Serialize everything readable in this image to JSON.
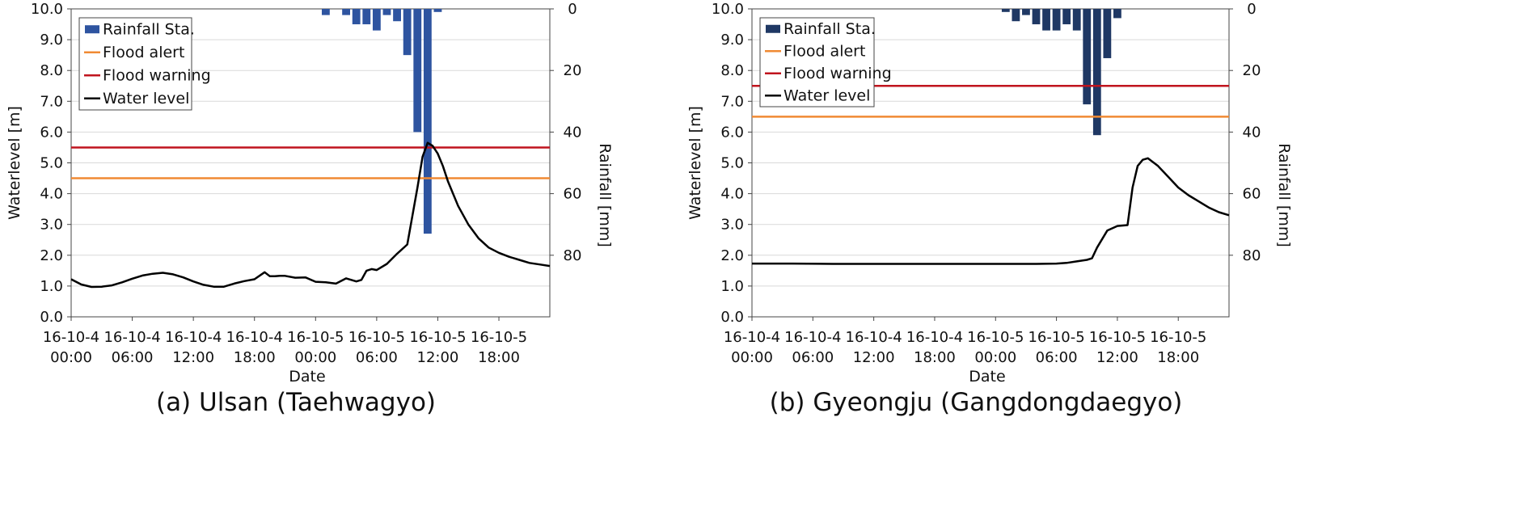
{
  "chart_data": [
    {
      "type": "line",
      "panel": "a",
      "caption": "(a) Ulsan (Taehwagyo)",
      "xlabel": "Date",
      "ylabel": "Waterlevel  [m]",
      "y2label": "Rainfall [mm]",
      "ylim": [
        0,
        10
      ],
      "y2lim": [
        100,
        0
      ],
      "y2_reversed": true,
      "yticks": [
        "0.0",
        "1.0",
        "2.0",
        "3.0",
        "4.0",
        "5.0",
        "6.0",
        "7.0",
        "8.0",
        "9.0",
        "10.0"
      ],
      "y2ticks": [
        "0",
        "20",
        "40",
        "60",
        "80"
      ],
      "xlim_hours": [
        0,
        47
      ],
      "xticks": [
        {
          "line1": "16-10-4",
          "line2": "00:00",
          "hour": 0
        },
        {
          "line1": "16-10-4",
          "line2": "06:00",
          "hour": 6
        },
        {
          "line1": "16-10-4",
          "line2": "12:00",
          "hour": 12
        },
        {
          "line1": "16-10-4",
          "line2": "18:00",
          "hour": 18
        },
        {
          "line1": "16-10-5",
          "line2": "00:00",
          "hour": 24
        },
        {
          "line1": "16-10-5",
          "line2": "06:00",
          "hour": 30
        },
        {
          "line1": "16-10-5",
          "line2": "12:00",
          "hour": 36
        },
        {
          "line1": "16-10-5",
          "line2": "18:00",
          "hour": 42
        }
      ],
      "grid": true,
      "legend_position": "top-left",
      "legend": [
        {
          "label": "Rainfall Sta.",
          "kind": "bar"
        },
        {
          "label": "Flood alert",
          "kind": "line"
        },
        {
          "label": "Flood warning",
          "kind": "line"
        },
        {
          "label": "Water level",
          "kind": "line"
        }
      ],
      "colors": {
        "rainfall": "#2e54a0",
        "alert": "#f08a33",
        "warning": "#c0141e",
        "water": "#000000"
      },
      "flood_alert": 4.5,
      "flood_warning": 5.5,
      "rainfall": {
        "hours": [
          25,
          27,
          28,
          29,
          30,
          31,
          32,
          33,
          34,
          35,
          36
        ],
        "values": [
          2,
          2,
          5,
          5,
          7,
          2,
          4,
          15,
          40,
          73,
          1
        ]
      },
      "water_level": {
        "hours": [
          0,
          1,
          2,
          3,
          4,
          5,
          6,
          7,
          8,
          9,
          10,
          11,
          12,
          13,
          14,
          15,
          16,
          17,
          18,
          19,
          19.5,
          20,
          20.5,
          21,
          22,
          23,
          24,
          25,
          26,
          27,
          28,
          28.5,
          29,
          29.5,
          30,
          31,
          32,
          33,
          34,
          34.5,
          35,
          35.5,
          36,
          36.5,
          37,
          38,
          39,
          40,
          41,
          42,
          43,
          44,
          45,
          46,
          47
        ],
        "values": [
          1.22,
          1.05,
          0.97,
          0.98,
          1.02,
          1.12,
          1.24,
          1.34,
          1.4,
          1.43,
          1.38,
          1.28,
          1.15,
          1.04,
          0.98,
          0.98,
          1.08,
          1.16,
          1.22,
          1.45,
          1.32,
          1.32,
          1.33,
          1.33,
          1.27,
          1.28,
          1.14,
          1.12,
          1.08,
          1.25,
          1.15,
          1.2,
          1.5,
          1.55,
          1.52,
          1.72,
          2.05,
          2.35,
          4.2,
          5.2,
          5.65,
          5.55,
          5.3,
          4.9,
          4.4,
          3.6,
          3.0,
          2.55,
          2.25,
          2.08,
          1.95,
          1.85,
          1.75,
          1.7,
          1.65
        ]
      }
    },
    {
      "type": "line",
      "panel": "b",
      "caption": "(b) Gyeongju (Gangdongdaegyo)",
      "xlabel": "Date",
      "ylabel": "Waterlevel  [m]",
      "y2label": "Rainfall [mm]",
      "ylim": [
        0,
        10
      ],
      "y2lim": [
        100,
        0
      ],
      "y2_reversed": true,
      "yticks": [
        "0.0",
        "1.0",
        "2.0",
        "3.0",
        "4.0",
        "5.0",
        "6.0",
        "7.0",
        "8.0",
        "9.0",
        "10.0"
      ],
      "y2ticks": [
        "0",
        "20",
        "40",
        "60",
        "80"
      ],
      "xlim_hours": [
        0,
        47
      ],
      "xticks": [
        {
          "line1": "16-10-4",
          "line2": "00:00",
          "hour": 0
        },
        {
          "line1": "16-10-4",
          "line2": "06:00",
          "hour": 6
        },
        {
          "line1": "16-10-4",
          "line2": "12:00",
          "hour": 12
        },
        {
          "line1": "16-10-4",
          "line2": "18:00",
          "hour": 18
        },
        {
          "line1": "16-10-5",
          "line2": "00:00",
          "hour": 24
        },
        {
          "line1": "16-10-5",
          "line2": "06:00",
          "hour": 30
        },
        {
          "line1": "16-10-5",
          "line2": "12:00",
          "hour": 36
        },
        {
          "line1": "16-10-5",
          "line2": "18:00",
          "hour": 42
        }
      ],
      "grid": true,
      "legend_position": "top-left",
      "legend": [
        {
          "label": "Rainfall Sta.",
          "kind": "bar"
        },
        {
          "label": "Flood alert",
          "kind": "line"
        },
        {
          "label": "Flood warning",
          "kind": "line"
        },
        {
          "label": "Water level",
          "kind": "line"
        }
      ],
      "colors": {
        "rainfall": "#1f3864",
        "alert": "#f08a33",
        "warning": "#c0141e",
        "water": "#000000"
      },
      "flood_alert": 6.5,
      "flood_warning": 7.5,
      "rainfall": {
        "hours": [
          25,
          26,
          27,
          28,
          29,
          30,
          31,
          32,
          33,
          34,
          35,
          36
        ],
        "values": [
          1,
          4,
          2,
          5,
          7,
          7,
          5,
          7,
          31,
          41,
          16,
          3
        ]
      },
      "water_level": {
        "hours": [
          0,
          4,
          8,
          12,
          16,
          20,
          24,
          28,
          30,
          31,
          32,
          33,
          33.5,
          34,
          35,
          36,
          37,
          37.5,
          38,
          38.5,
          39,
          40,
          41,
          42,
          43,
          44,
          45,
          46,
          47
        ],
        "values": [
          1.73,
          1.73,
          1.72,
          1.72,
          1.72,
          1.72,
          1.72,
          1.72,
          1.73,
          1.75,
          1.8,
          1.85,
          1.9,
          2.25,
          2.8,
          2.95,
          2.98,
          4.2,
          4.9,
          5.1,
          5.15,
          4.9,
          4.55,
          4.2,
          3.95,
          3.75,
          3.55,
          3.4,
          3.3
        ]
      }
    }
  ]
}
